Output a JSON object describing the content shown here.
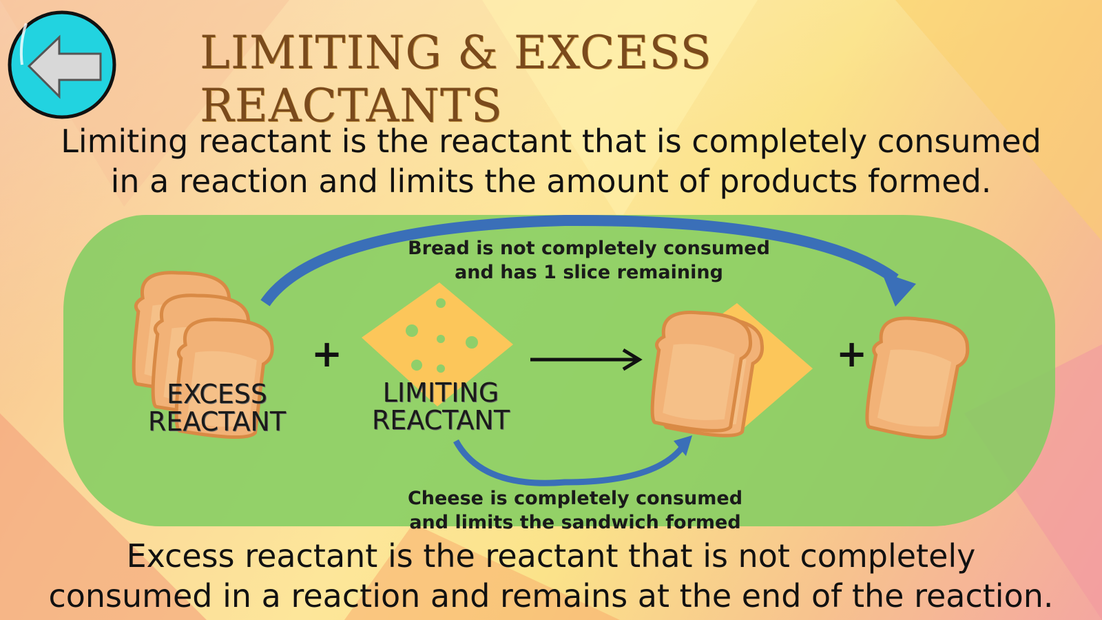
{
  "header": {
    "back_icon": "back-arrow-icon",
    "title": "LIMITING & EXCESS REACTANTS"
  },
  "definitions": {
    "limiting": [
      "Limiting reactant is the reactant that is completely consumed",
      "in a reaction and limits the amount of products formed."
    ],
    "excess": [
      "Excess reactant is the reactant that is not completely",
      "consumed in a reaction and remains at the end of the reaction."
    ]
  },
  "diagram": {
    "excess_label": [
      "EXCESS",
      "REACTANT"
    ],
    "limiting_label": [
      "LIMITING",
      "REACTANT"
    ],
    "plus": "+",
    "bread_note": [
      "Bread is not completely consumed",
      "and has 1 slice remaining"
    ],
    "cheese_note": [
      "Cheese is completely consumed",
      "and limits the sandwich formed"
    ]
  },
  "colors": {
    "back_button": "#22d3e0",
    "title": "#7a4a1c",
    "panel": "#80ce60",
    "curve_arrow": "#3a6fb8",
    "bread": "#f2b277",
    "cheese": "#fcc65a"
  }
}
